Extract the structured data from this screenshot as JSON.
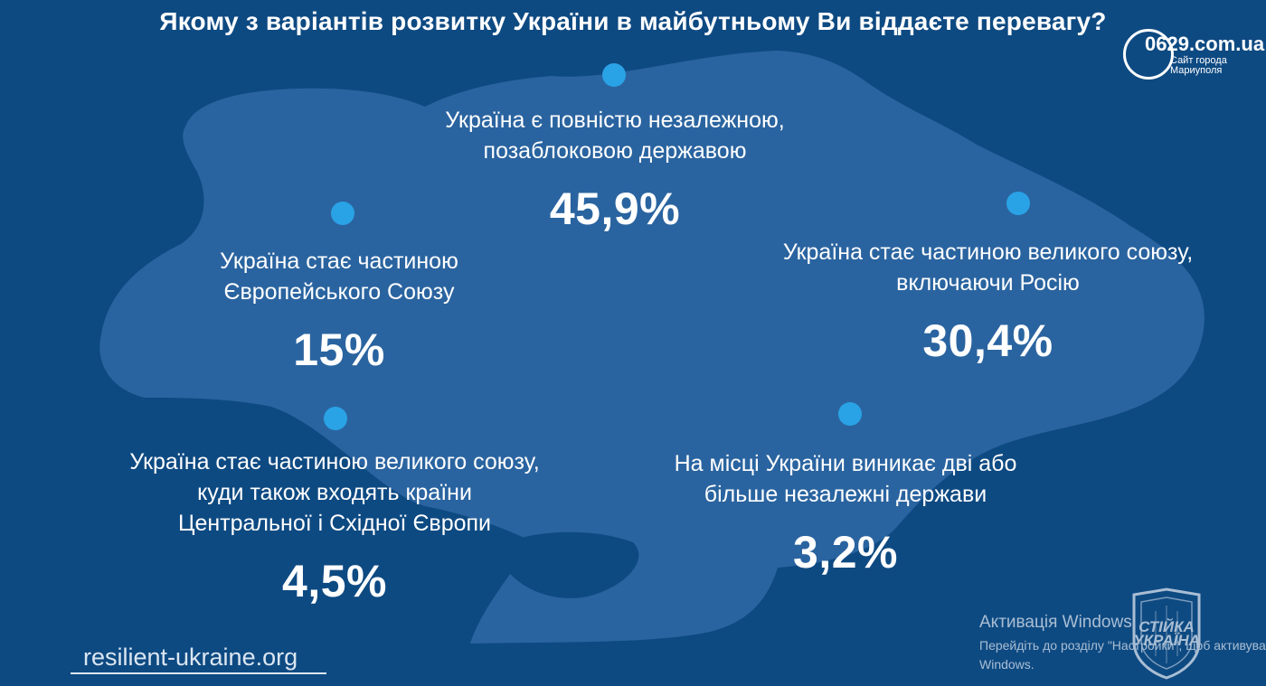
{
  "title": "Якому з варіантів розвитку України в майбутньому Ви віддаєте перевагу?",
  "options": [
    {
      "label_lines": [
        "Україна є повністю незалежною,",
        "позаблоковою державою"
      ],
      "value": "45,9%"
    },
    {
      "label_lines": [
        "Україна стає частиною",
        "Європейського Союзу"
      ],
      "value": "15%"
    },
    {
      "label_lines": [
        "Україна стає частиною великого союзу,",
        "включаючи Росію"
      ],
      "value": "30,4%"
    },
    {
      "label_lines": [
        "Україна стає частиною великого союзу,",
        "куди також входять країни",
        "Центральної і Східної Європи"
      ],
      "value": "4,5%"
    },
    {
      "label_lines": [
        "На місці України виникає дві або",
        "більше незалежні держави"
      ],
      "value": "3,2%"
    }
  ],
  "footer": {
    "site": "resilient-ukraine.org"
  },
  "badge": {
    "main": "0629.com.ua",
    "sub_lines": [
      "Сайт города",
      "Мариуполя"
    ]
  },
  "activation": {
    "title": "Активація Windows",
    "sub_lines": [
      "Перейдіть до розділу \"Настройки\", щоб активувати",
      "Windows."
    ]
  },
  "watermark": {
    "lines": [
      "СТІЙКА",
      "УКРАЇНА"
    ]
  },
  "colors": {
    "background": "#0e4a82",
    "map": "#2a64a0",
    "dot": "#2aa2e6",
    "text": "#ffffff"
  }
}
